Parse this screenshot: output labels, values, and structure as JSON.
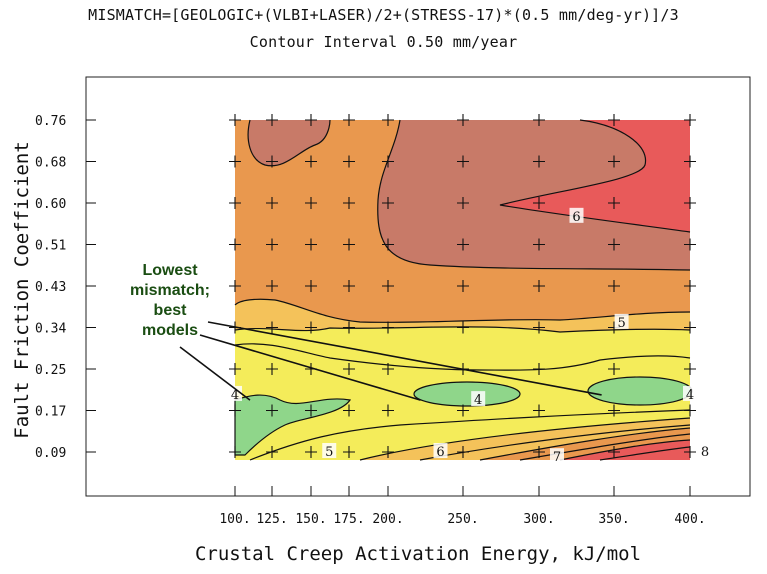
{
  "chart_data": {
    "type": "heatmap",
    "title": "MISMATCH=[GEOLOGIC+(VLBI+LASER)/2+(STRESS-17)*(0.5 mm/deg-yr)]/3",
    "subtitle": "Contour Interval 0.50 mm/year",
    "xlabel": "Crustal Creep Activation Energy, kJ/mol",
    "ylabel": "Fault Friction Coefficient",
    "x": [
      100,
      125,
      150,
      175,
      200,
      250,
      300,
      350,
      400
    ],
    "x_tick_labels": [
      "100.",
      "125.",
      "150.",
      "175.",
      "200.",
      "250.",
      "300.",
      "350.",
      "400."
    ],
    "y": [
      0.09,
      0.17,
      0.25,
      0.34,
      0.43,
      0.51,
      0.6,
      0.68,
      0.76
    ],
    "y_tick_labels": [
      "0.09",
      "0.17",
      "0.25",
      "0.34",
      "0.43",
      "0.51",
      "0.60",
      "0.68",
      "0.76"
    ],
    "contour_levels": [
      4,
      4.5,
      5,
      5.5,
      6,
      6.5,
      7,
      7.5,
      8
    ],
    "contour_labels": [
      {
        "text": "4",
        "x": 100,
        "y": 0.2
      },
      {
        "text": "4",
        "x": 260,
        "y": 0.19
      },
      {
        "text": "4",
        "x": 400,
        "y": 0.2
      },
      {
        "text": "5",
        "x": 355,
        "y": 0.35
      },
      {
        "text": "5",
        "x": 162,
        "y": 0.09
      },
      {
        "text": "6",
        "x": 325,
        "y": 0.57
      },
      {
        "text": "6",
        "x": 235,
        "y": 0.09
      },
      {
        "text": "7",
        "x": 312,
        "y": 0.08
      },
      {
        "text": "8",
        "x": 410,
        "y": 0.09
      }
    ],
    "grid_marks": "plus",
    "annotation": {
      "lines": [
        "Lowest",
        "mismatch;",
        "best",
        "models"
      ],
      "points_to": [
        {
          "x": 100,
          "y": 0.19
        },
        {
          "x": 235,
          "y": 0.19
        },
        {
          "x": 355,
          "y": 0.2
        }
      ]
    },
    "colors": {
      "green": "#8fd68a",
      "yellow": "#f4ec5a",
      "light_orange": "#f4c25a",
      "orange": "#e9984e",
      "brown_red": "#c87a68",
      "red": "#e85a5a",
      "line": "#111111"
    }
  }
}
